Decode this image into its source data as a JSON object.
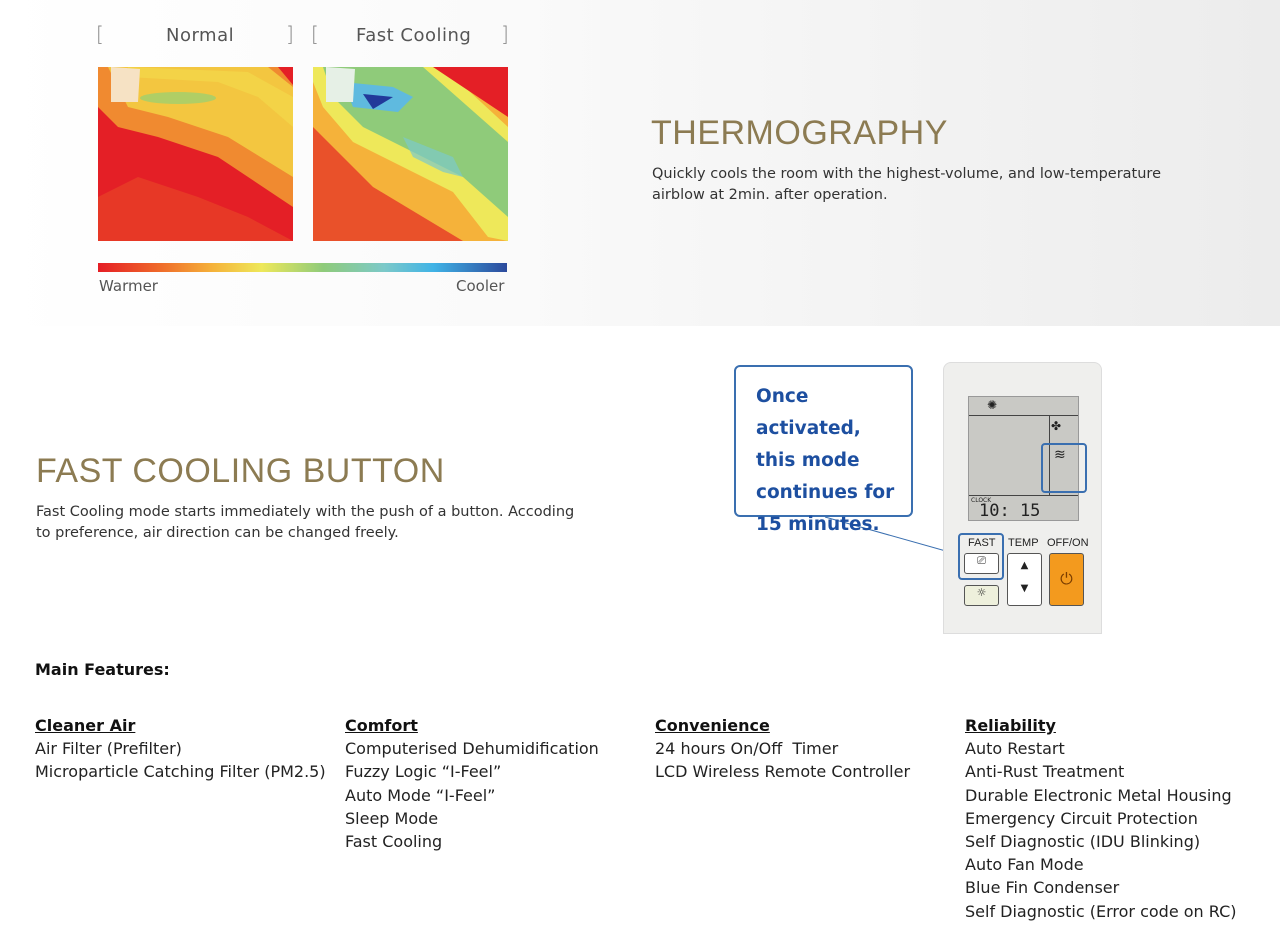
{
  "thermo": {
    "labels": {
      "normal": "Normal",
      "fast": "Fast Cooling"
    },
    "scale": {
      "warm": "Warmer",
      "cool": "Cooler"
    },
    "title": "THERMOGRAPHY",
    "description": "Quickly cools the room with the highest-volume, and low-temperature airblow at 2min. after operation."
  },
  "fast": {
    "title": "FAST COOLING BUTTON",
    "description": "Fast Cooling mode starts immediately with the push of a button. Accoding to preference, air direction can be changed freely.",
    "callout": [
      "Once activated,",
      "this mode",
      "continues for",
      "15 minutes."
    ],
    "remote": {
      "fast": "FAST",
      "temp": "TEMP",
      "offon": "OFF/ON",
      "clock_label": "CLOCK",
      "clock": "10: 15"
    }
  },
  "features": {
    "heading": "Main Features:",
    "columns": [
      {
        "title": "Cleaner Air",
        "items": [
          "Air Filter (Prefilter)",
          "Microparticle Catching Filter (PM2.5)"
        ]
      },
      {
        "title": "Comfort",
        "items": [
          "Computerised Dehumidification",
          "Fuzzy Logic “I-Feel”",
          "Auto Mode “I-Feel”",
          "Sleep Mode",
          "Fast Cooling"
        ]
      },
      {
        "title": "Convenience",
        "items": [
          "24 hours On/Off  Timer",
          "LCD Wireless Remote Controller"
        ]
      },
      {
        "title": "Reliability",
        "items": [
          "Auto Restart",
          "Anti-Rust Treatment",
          "Durable Electronic Metal Housing",
          "Emergency Circuit Protection",
          "Self Diagnostic (IDU Blinking)",
          "Auto Fan Mode",
          "Blue Fin Condenser",
          "Self Diagnostic (Error code on RC)"
        ]
      }
    ]
  },
  "colors": {
    "accent": "#8c7b52",
    "callout": "#1d4fa0",
    "power": "#f39a1e"
  }
}
